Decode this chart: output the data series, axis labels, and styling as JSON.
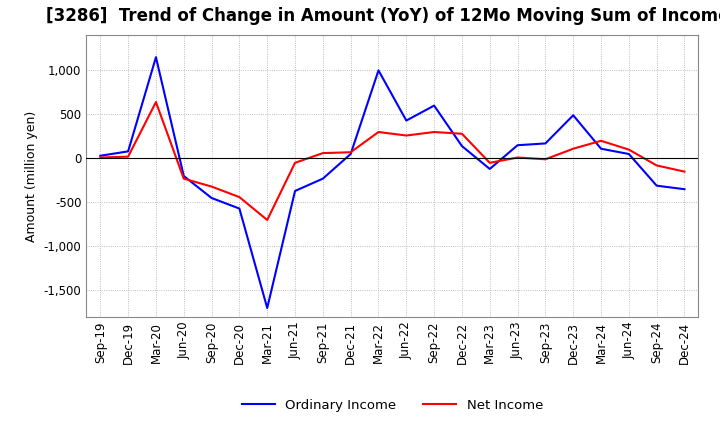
{
  "title": "[3286]  Trend of Change in Amount (YoY) of 12Mo Moving Sum of Incomes",
  "ylabel": "Amount (million yen)",
  "ylim": [
    -1800,
    1400
  ],
  "yticks": [
    -1500,
    -1000,
    -500,
    0,
    500,
    1000
  ],
  "x_labels": [
    "Sep-19",
    "Dec-19",
    "Mar-20",
    "Jun-20",
    "Sep-20",
    "Dec-20",
    "Mar-21",
    "Jun-21",
    "Sep-21",
    "Dec-21",
    "Mar-22",
    "Jun-22",
    "Sep-22",
    "Dec-22",
    "Mar-23",
    "Jun-23",
    "Sep-23",
    "Dec-23",
    "Mar-24",
    "Jun-24",
    "Sep-24",
    "Dec-24"
  ],
  "ordinary_income": [
    30,
    80,
    1150,
    -200,
    -450,
    -570,
    -1700,
    -370,
    -230,
    50,
    1000,
    430,
    600,
    140,
    -120,
    150,
    170,
    490,
    110,
    50,
    -310,
    -350
  ],
  "net_income": [
    10,
    20,
    640,
    -230,
    -320,
    -440,
    -700,
    -50,
    60,
    70,
    300,
    260,
    300,
    280,
    -50,
    10,
    -10,
    110,
    200,
    100,
    -80,
    -150
  ],
  "ordinary_color": "#0000FF",
  "net_color": "#FF0000",
  "background_color": "#FFFFFF",
  "grid_color": "#AAAAAA",
  "title_fontsize": 12,
  "label_fontsize": 9,
  "tick_fontsize": 8.5
}
